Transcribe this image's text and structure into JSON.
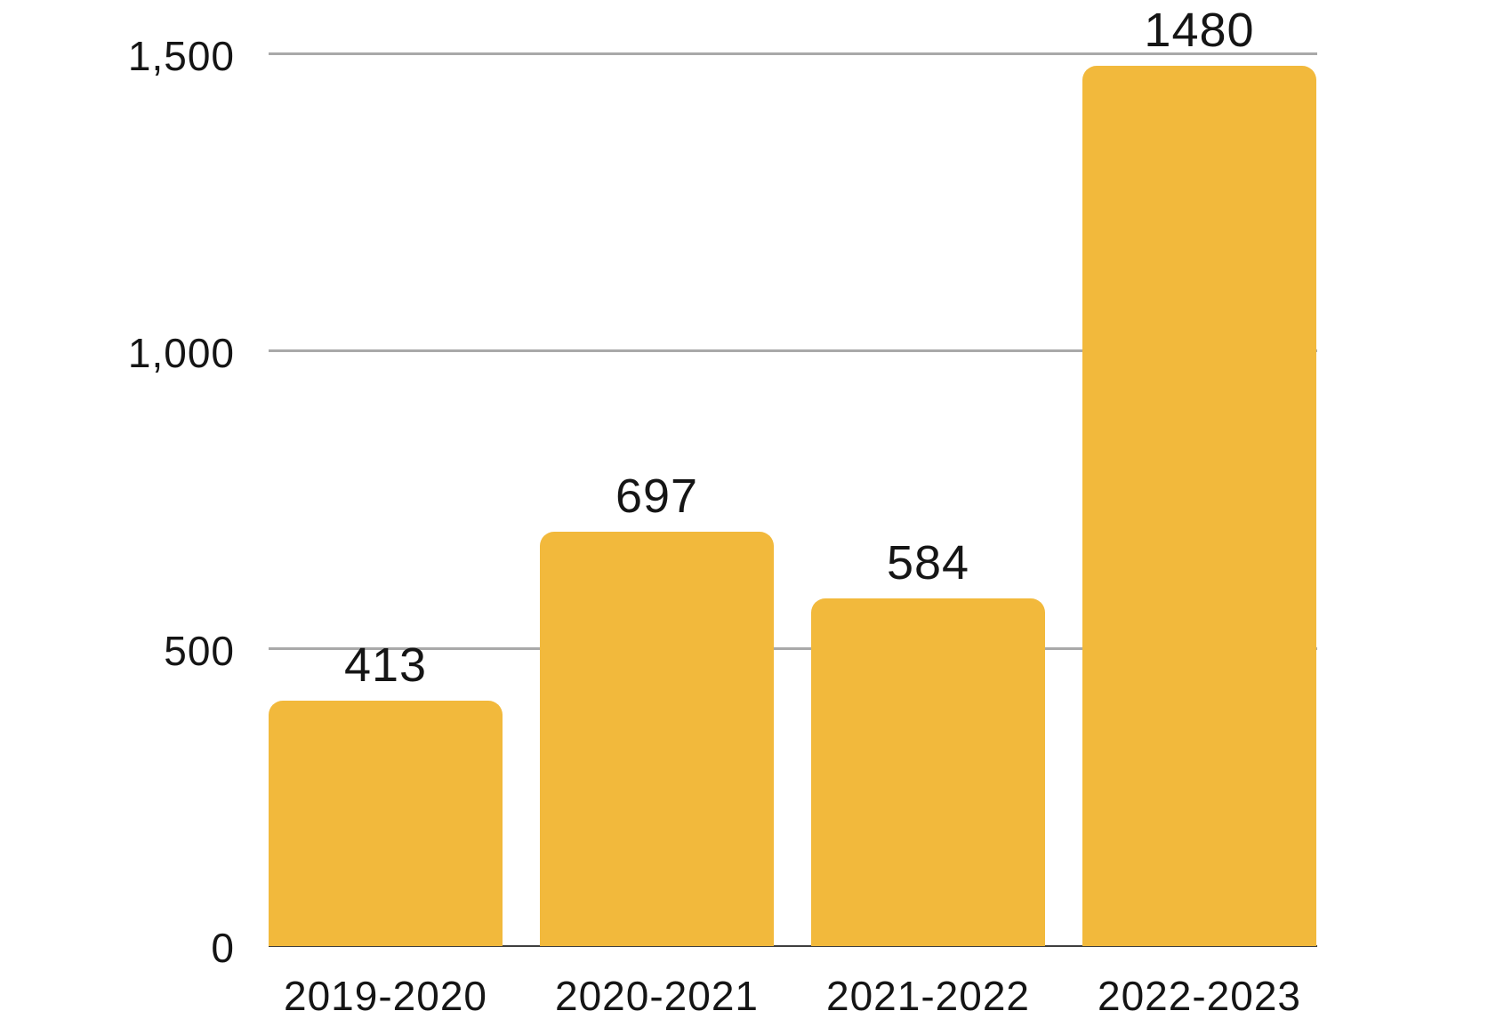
{
  "chart_data": {
    "type": "bar",
    "categories": [
      "2019-2020",
      "2020-2021",
      "2021-2022",
      "2022-2023"
    ],
    "values": [
      413,
      697,
      584,
      1480
    ],
    "value_labels": [
      "413",
      "697",
      "584",
      "1480"
    ],
    "title": "",
    "xlabel": "",
    "ylabel": "",
    "ylim": [
      0,
      1500
    ],
    "yticks": [
      {
        "value": 0,
        "label": "0"
      },
      {
        "value": 500,
        "label": "500"
      },
      {
        "value": 1000,
        "label": "1,000"
      },
      {
        "value": 1500,
        "label": "1,500"
      }
    ],
    "grid": true,
    "legend": false,
    "legend_position": "none",
    "colors": {
      "bar": "#F2B93C",
      "gridline": "#A9A9A9",
      "axis_line": "#3F3F3F",
      "text": "#151515",
      "background": "#FFFFFF"
    }
  }
}
